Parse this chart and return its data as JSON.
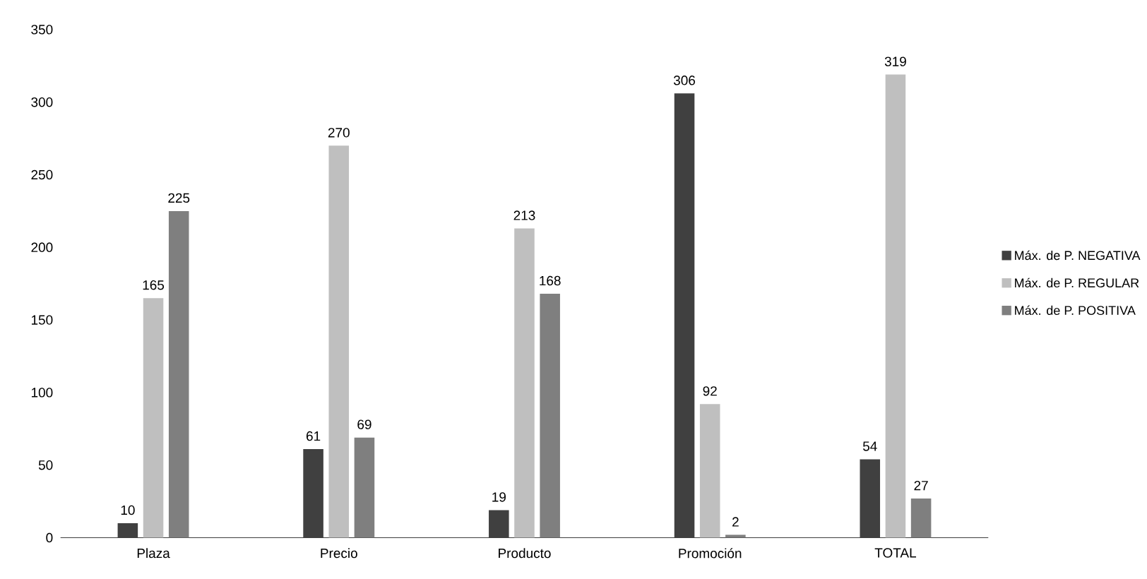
{
  "chart_data": {
    "type": "bar",
    "categories": [
      "Plaza",
      "Precio",
      "Producto",
      "Promoción",
      "TOTAL"
    ],
    "series": [
      {
        "name": "Máx. de P. NEGATIVA",
        "color": "#404040",
        "values": [
          10,
          61,
          19,
          306,
          54
        ]
      },
      {
        "name": "Máx. de P. REGULAR",
        "color": "#bfbfbf",
        "values": [
          165,
          270,
          213,
          92,
          319
        ]
      },
      {
        "name": "Máx. de P. POSITIVA",
        "color": "#7f7f7f",
        "values": [
          225,
          69,
          168,
          2,
          27
        ]
      }
    ],
    "ylim": [
      0,
      350
    ],
    "yticks": [
      0,
      50,
      100,
      150,
      200,
      250,
      300,
      350
    ],
    "legend": "right",
    "data_labels": true
  }
}
